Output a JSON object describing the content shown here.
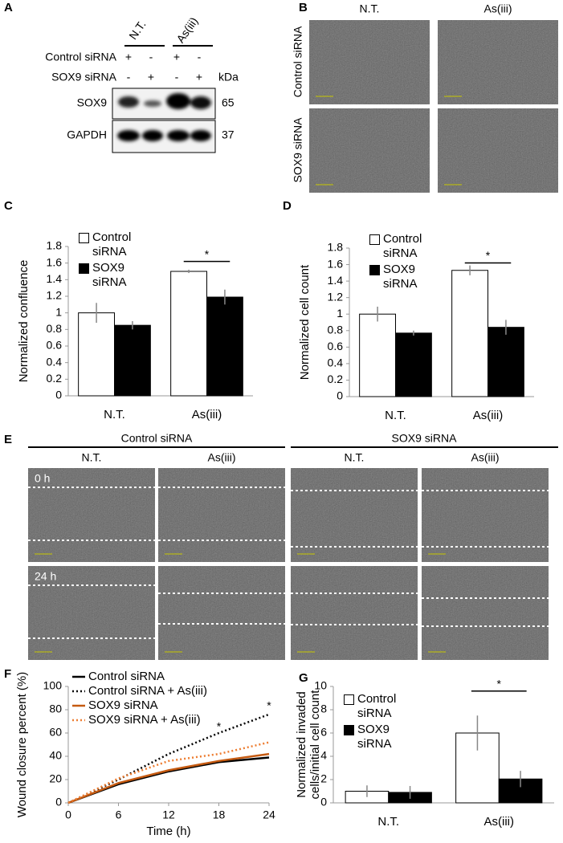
{
  "panel_labels": [
    "A",
    "B",
    "C",
    "D",
    "E",
    "F",
    "G"
  ],
  "western_blot": {
    "columns": [
      "N.T.",
      "As(iii)"
    ],
    "rows": [
      {
        "label": "Control siRNA",
        "marks": [
          "+",
          "-",
          "+",
          "-"
        ]
      },
      {
        "label": "SOX9 siRNA",
        "marks": [
          "-",
          "+",
          "-",
          "+"
        ]
      }
    ],
    "unit": "kDa",
    "bands": [
      {
        "label": "SOX9",
        "kda": 65
      },
      {
        "label": "GAPDH",
        "kda": 37
      }
    ]
  },
  "images_b": {
    "columns": [
      "N.T.",
      "As(iii)"
    ],
    "rows": [
      "Control siRNA",
      "SOX9 siRNA"
    ]
  },
  "wound_images": {
    "groups": [
      "Control siRNA",
      "SOX9 siRNA"
    ],
    "columns": [
      "N.T.",
      "As(iii)",
      "N.T.",
      "As(iii)"
    ],
    "rows": [
      "0 h",
      "24 h"
    ]
  },
  "chart_data": [
    {
      "type": "bar",
      "categories": [
        "N.T.",
        "As(iii)"
      ],
      "y_label": "Normalized confluence",
      "ylim": [
        0,
        1.8
      ],
      "yticks": [
        0,
        0.2,
        0.4,
        0.6,
        0.8,
        1,
        1.2,
        1.4,
        1.6,
        1.8
      ],
      "series": [
        {
          "name": "Control siRNA",
          "color": "#ffffff",
          "values": [
            1,
            1.5
          ],
          "errors": [
            0.12,
            0.02
          ]
        },
        {
          "name": "SOX9 siRNA",
          "color": "#000000",
          "values": [
            0.85,
            1.19
          ],
          "errors": [
            0.05,
            0.09
          ]
        }
      ],
      "annotations": [
        {
          "text": "*",
          "category": 1,
          "y": 1.62
        }
      ]
    },
    {
      "type": "bar",
      "categories": [
        "N.T.",
        "As(iii)"
      ],
      "y_label": "Normalized cell count",
      "ylim": [
        0,
        1.8
      ],
      "yticks": [
        0,
        0.2,
        0.4,
        0.6,
        0.8,
        1,
        1.2,
        1.4,
        1.6,
        1.8
      ],
      "series": [
        {
          "name": "Control siRNA",
          "color": "#ffffff",
          "values": [
            1,
            1.53
          ],
          "errors": [
            0.09,
            0.06
          ]
        },
        {
          "name": "SOX9 siRNA",
          "color": "#000000",
          "values": [
            0.77,
            0.84
          ],
          "errors": [
            0.03,
            0.09
          ]
        }
      ],
      "annotations": [
        {
          "text": "*",
          "category": 1,
          "y": 1.62
        }
      ]
    },
    {
      "type": "line",
      "x": [
        0,
        6,
        12,
        18,
        24
      ],
      "xlim": [
        0,
        24
      ],
      "xticks": [
        0,
        6,
        12,
        18,
        24
      ],
      "ylim": [
        0,
        100
      ],
      "yticks": [
        0,
        20,
        40,
        60,
        80,
        100
      ],
      "x_label": "Time (h)",
      "y_label": "Wound closure percent (%)",
      "series": [
        {
          "name": "Control siRNA",
          "color": "#000000",
          "dashed": false,
          "values": [
            0,
            16,
            27,
            35,
            39
          ]
        },
        {
          "name": "Control siRNA + As(iii)",
          "color": "#000000",
          "dashed": true,
          "values": [
            0,
            20,
            42,
            60,
            76
          ]
        },
        {
          "name": "SOX9 siRNA",
          "color": "#c55a11",
          "dashed": false,
          "values": [
            0,
            17,
            28,
            36,
            42
          ]
        },
        {
          "name": "SOX9 siRNA + As(iii)",
          "color": "#ed7d31",
          "dashed": true,
          "values": [
            0,
            21,
            36,
            42,
            52
          ]
        }
      ],
      "annotations": [
        {
          "text": "*",
          "x": 18,
          "y": 65
        },
        {
          "text": "*",
          "x": 24,
          "y": 83
        }
      ]
    },
    {
      "type": "bar",
      "categories": [
        "N.T.",
        "As(iii)"
      ],
      "y_label": [
        "Normalized invaded",
        "cells/initial cell count"
      ],
      "ylim": [
        0,
        10
      ],
      "yticks": [
        0,
        2,
        4,
        6,
        8,
        10
      ],
      "series": [
        {
          "name": "Control siRNA",
          "color": "#ffffff",
          "values": [
            1,
            6
          ],
          "errors": [
            0.5,
            1.5
          ]
        },
        {
          "name": "SOX9 siRNA",
          "color": "#000000",
          "values": [
            0.9,
            2.05
          ],
          "errors": [
            0.55,
            0.7
          ]
        }
      ],
      "annotations": [
        {
          "text": "*",
          "category": 1,
          "y": 9.6
        }
      ]
    }
  ]
}
